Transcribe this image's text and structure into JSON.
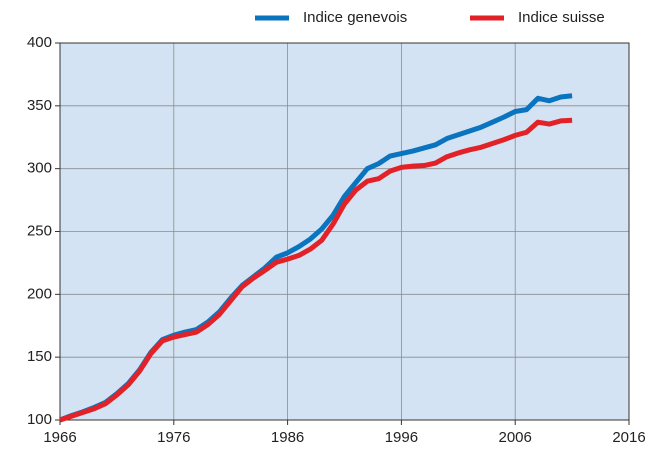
{
  "chart_data": {
    "type": "line",
    "x": [
      1966,
      1967,
      1968,
      1969,
      1970,
      1971,
      1972,
      1973,
      1974,
      1975,
      1976,
      1977,
      1978,
      1979,
      1980,
      1981,
      1982,
      1983,
      1984,
      1985,
      1986,
      1987,
      1988,
      1989,
      1990,
      1991,
      1992,
      1993,
      1994,
      1995,
      1996,
      1997,
      1998,
      1999,
      2000,
      2001,
      2002,
      2003,
      2004,
      2005,
      2006,
      2007,
      2008,
      2009,
      2010,
      2011
    ],
    "series": [
      {
        "name": "Indice genevois",
        "color": "#0a74bf",
        "values": [
          100,
          103.5,
          106.5,
          110,
          114,
          121,
          129,
          140,
          154,
          164,
          167.5,
          170,
          172,
          178,
          186,
          197,
          207,
          214,
          221,
          229.5,
          233,
          238,
          244,
          252,
          263,
          278,
          289,
          300,
          304,
          310,
          312,
          314,
          316.5,
          319,
          324,
          327,
          330,
          333,
          337,
          341,
          345.5,
          347,
          356,
          354,
          357,
          358
        ]
      },
      {
        "name": "Indice suisse",
        "color": "#e32228",
        "values": [
          100,
          103,
          106,
          109,
          113,
          120,
          128,
          139,
          153,
          163,
          166,
          168,
          170,
          176,
          184,
          195,
          206,
          213,
          219,
          225.5,
          228,
          231,
          236,
          243,
          256,
          272,
          283,
          290,
          292,
          298,
          301,
          302,
          302.5,
          304.5,
          309.5,
          312.5,
          315,
          317,
          320,
          323,
          326.5,
          329,
          337,
          335.5,
          338,
          338.5
        ]
      }
    ],
    "xlim": [
      1966,
      2016
    ],
    "xticks": [
      1966,
      1976,
      1986,
      1996,
      2006,
      2016
    ],
    "ylim": [
      100,
      400
    ],
    "yticks": [
      100,
      150,
      200,
      250,
      300,
      350,
      400
    ],
    "grid": true,
    "legend": "top"
  }
}
